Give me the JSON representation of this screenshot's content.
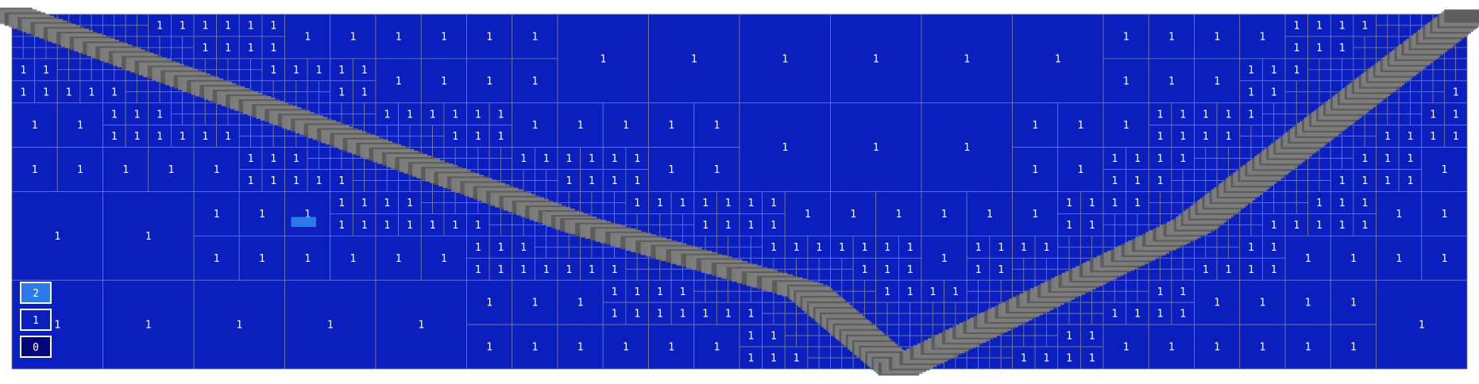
{
  "chart_data": {
    "type": "heatmap",
    "title": "",
    "description_free": true,
    "value_labels": [
      "2",
      "1",
      "0"
    ],
    "cell_value": "1",
    "colors": {
      "0": "#06067a",
      "1": "#0b1fbf",
      "2": "#2a7ae8",
      "grid": "#7c7c90",
      "diagonal": "#7e7e7e",
      "diagonal_dark": "#5a5a5a",
      "background": "#ffffff"
    }
  },
  "legend": {
    "items": [
      {
        "label": "2",
        "color": "#2a7ae8"
      },
      {
        "label": "1",
        "color": "#0b1fbf"
      },
      {
        "label": "0",
        "color": "#06067a"
      }
    ]
  }
}
